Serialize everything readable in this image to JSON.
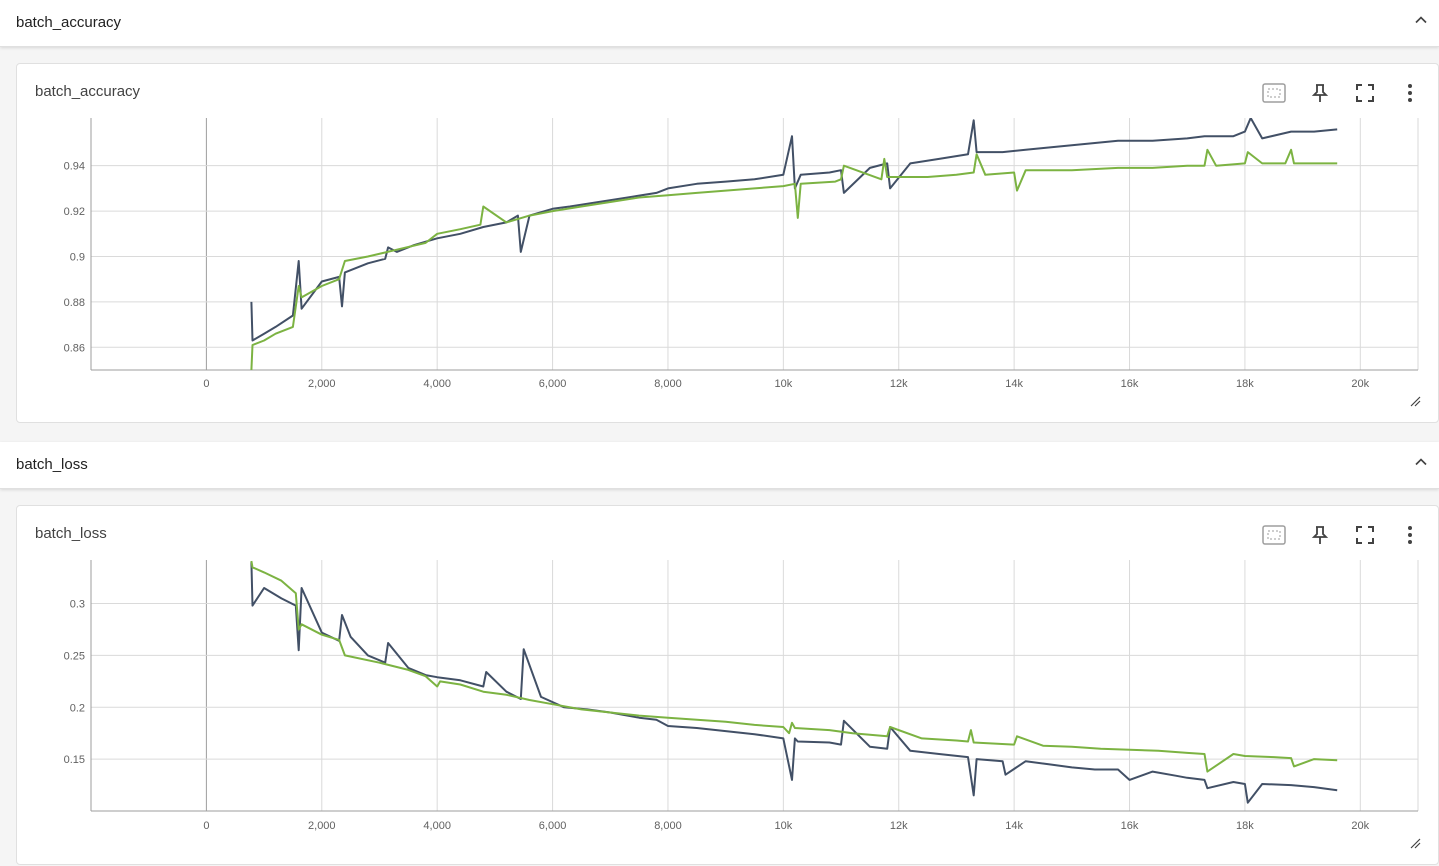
{
  "sections": [
    {
      "title": "batch_accuracy",
      "card_title": "batch_accuracy"
    },
    {
      "title": "batch_loss",
      "card_title": "batch_loss"
    }
  ],
  "toolbar": {
    "icons": [
      "fit-domain-icon",
      "pin-icon",
      "fullscreen-icon",
      "more-vert-icon"
    ]
  },
  "colors": {
    "series_dark": "#425066",
    "series_green": "#7cb342",
    "grid": "#dadada",
    "axis": "#9e9e9e"
  },
  "chart_data": [
    {
      "type": "line",
      "title": "batch_accuracy",
      "xlim": [
        -2000,
        21000
      ],
      "ylim": [
        0.85,
        0.961
      ],
      "x_ticks": [
        0,
        2000,
        4000,
        6000,
        8000,
        10000,
        12000,
        14000,
        16000,
        18000,
        20000
      ],
      "x_tick_labels": [
        "0",
        "2,000",
        "4,000",
        "6,000",
        "8,000",
        "10k",
        "12k",
        "14k",
        "16k",
        "18k",
        "20k"
      ],
      "y_ticks": [
        0.86,
        0.88,
        0.9,
        0.92,
        0.94
      ],
      "y_tick_labels": [
        "0.86",
        "0.88",
        "0.9",
        "0.92",
        "0.94"
      ],
      "grid": true,
      "series": [
        {
          "color": "#425066",
          "x": [
            780,
            800,
            1000,
            1200,
            1500,
            1600,
            1650,
            2000,
            2300,
            2350,
            2400,
            2800,
            3100,
            3150,
            3300,
            3600,
            4000,
            4400,
            4800,
            5200,
            5400,
            5450,
            5600,
            6000,
            6300,
            6800,
            7300,
            7800,
            8000,
            8500,
            9000,
            9500,
            10000,
            10150,
            10200,
            10300,
            10800,
            11000,
            11050,
            11500,
            11800,
            11850,
            12200,
            12700,
            13200,
            13300,
            13350,
            13800,
            14200,
            14600,
            15000,
            15400,
            15800,
            16400,
            17000,
            17300,
            17800,
            18000,
            18100,
            18300,
            18800,
            19200,
            19600
          ],
          "y": [
            0.88,
            0.863,
            0.866,
            0.869,
            0.874,
            0.898,
            0.877,
            0.889,
            0.891,
            0.878,
            0.893,
            0.897,
            0.899,
            0.904,
            0.902,
            0.905,
            0.908,
            0.91,
            0.913,
            0.915,
            0.918,
            0.902,
            0.918,
            0.921,
            0.922,
            0.924,
            0.926,
            0.928,
            0.93,
            0.932,
            0.933,
            0.934,
            0.936,
            0.953,
            0.93,
            0.936,
            0.937,
            0.938,
            0.928,
            0.939,
            0.941,
            0.93,
            0.941,
            0.943,
            0.945,
            0.96,
            0.946,
            0.946,
            0.947,
            0.948,
            0.949,
            0.95,
            0.951,
            0.951,
            0.952,
            0.953,
            0.953,
            0.955,
            0.961,
            0.952,
            0.955,
            0.955,
            0.956
          ]
        },
        {
          "color": "#7cb342",
          "x": [
            780,
            800,
            1000,
            1200,
            1500,
            1600,
            1650,
            2000,
            2300,
            2400,
            2800,
            3300,
            3800,
            4000,
            4400,
            4750,
            4800,
            5200,
            5600,
            6000,
            6500,
            7000,
            7500,
            8000,
            8500,
            9000,
            9500,
            10000,
            10200,
            10250,
            10300,
            10900,
            11000,
            11050,
            11700,
            11750,
            11800,
            12500,
            13000,
            13300,
            13350,
            13500,
            14000,
            14050,
            14200,
            15000,
            15800,
            16400,
            17000,
            17300,
            17350,
            17500,
            18000,
            18050,
            18300,
            18700,
            18800,
            18850,
            19300,
            19600
          ],
          "y": [
            0.85,
            0.861,
            0.863,
            0.866,
            0.869,
            0.887,
            0.882,
            0.887,
            0.89,
            0.898,
            0.9,
            0.903,
            0.906,
            0.91,
            0.912,
            0.914,
            0.922,
            0.915,
            0.918,
            0.92,
            0.922,
            0.924,
            0.926,
            0.927,
            0.928,
            0.929,
            0.93,
            0.931,
            0.932,
            0.917,
            0.932,
            0.933,
            0.934,
            0.94,
            0.934,
            0.943,
            0.935,
            0.935,
            0.936,
            0.937,
            0.945,
            0.936,
            0.937,
            0.929,
            0.938,
            0.938,
            0.939,
            0.939,
            0.94,
            0.94,
            0.947,
            0.94,
            0.941,
            0.946,
            0.941,
            0.941,
            0.947,
            0.941,
            0.941,
            0.941
          ]
        }
      ]
    },
    {
      "type": "line",
      "title": "batch_loss",
      "xlim": [
        -2000,
        21000
      ],
      "ylim": [
        0.1,
        0.342
      ],
      "x_ticks": [
        0,
        2000,
        4000,
        6000,
        8000,
        10000,
        12000,
        14000,
        16000,
        18000,
        20000
      ],
      "x_tick_labels": [
        "0",
        "2,000",
        "4,000",
        "6,000",
        "8,000",
        "10k",
        "12k",
        "14k",
        "16k",
        "18k",
        "20k"
      ],
      "y_ticks": [
        0.15,
        0.2,
        0.25,
        0.3
      ],
      "y_tick_labels": [
        "0.15",
        "0.2",
        "0.25",
        "0.3"
      ],
      "grid": true,
      "series": [
        {
          "color": "#425066",
          "x": [
            780,
            800,
            1000,
            1300,
            1550,
            1600,
            1650,
            2000,
            2300,
            2350,
            2500,
            2800,
            3100,
            3150,
            3500,
            3800,
            4000,
            4400,
            4800,
            4850,
            5200,
            5450,
            5500,
            5800,
            6200,
            6600,
            7000,
            7500,
            7800,
            8000,
            8500,
            9000,
            9500,
            10000,
            10150,
            10200,
            10250,
            10800,
            11000,
            11050,
            11500,
            11800,
            11850,
            12200,
            12700,
            13200,
            13300,
            13350,
            13800,
            13850,
            14200,
            14600,
            15000,
            15400,
            15800,
            16000,
            16400,
            16800,
            17000,
            17300,
            17350,
            17800,
            18000,
            18050,
            18300,
            18800,
            19200,
            19600
          ],
          "y": [
            0.34,
            0.298,
            0.315,
            0.305,
            0.298,
            0.255,
            0.315,
            0.272,
            0.264,
            0.289,
            0.268,
            0.25,
            0.243,
            0.262,
            0.238,
            0.231,
            0.229,
            0.226,
            0.22,
            0.234,
            0.215,
            0.208,
            0.256,
            0.21,
            0.2,
            0.198,
            0.195,
            0.19,
            0.188,
            0.182,
            0.18,
            0.177,
            0.174,
            0.17,
            0.13,
            0.17,
            0.167,
            0.166,
            0.164,
            0.187,
            0.162,
            0.16,
            0.181,
            0.158,
            0.155,
            0.152,
            0.115,
            0.15,
            0.148,
            0.135,
            0.148,
            0.145,
            0.142,
            0.14,
            0.14,
            0.13,
            0.138,
            0.134,
            0.132,
            0.13,
            0.122,
            0.128,
            0.126,
            0.108,
            0.126,
            0.125,
            0.123,
            0.12
          ]
        },
        {
          "color": "#7cb342",
          "x": [
            780,
            800,
            1000,
            1300,
            1550,
            1600,
            1650,
            2000,
            2300,
            2400,
            3000,
            3500,
            3800,
            4000,
            4050,
            4400,
            4800,
            5200,
            5600,
            6000,
            6500,
            7000,
            7500,
            8000,
            8500,
            9000,
            9500,
            10000,
            10100,
            10150,
            10200,
            10800,
            11200,
            11800,
            11850,
            12400,
            13000,
            13200,
            13250,
            13300,
            14000,
            14050,
            14500,
            15000,
            15500,
            16000,
            16500,
            17000,
            17300,
            17350,
            17800,
            18000,
            18500,
            18800,
            18850,
            19200,
            19600
          ],
          "y": [
            0.341,
            0.335,
            0.33,
            0.322,
            0.31,
            0.275,
            0.28,
            0.27,
            0.265,
            0.25,
            0.243,
            0.236,
            0.23,
            0.22,
            0.225,
            0.222,
            0.215,
            0.212,
            0.207,
            0.203,
            0.198,
            0.195,
            0.192,
            0.19,
            0.188,
            0.186,
            0.183,
            0.181,
            0.175,
            0.185,
            0.18,
            0.178,
            0.175,
            0.172,
            0.181,
            0.17,
            0.168,
            0.167,
            0.178,
            0.166,
            0.164,
            0.172,
            0.163,
            0.162,
            0.16,
            0.159,
            0.158,
            0.156,
            0.155,
            0.138,
            0.155,
            0.153,
            0.152,
            0.151,
            0.143,
            0.15,
            0.149
          ]
        }
      ]
    }
  ]
}
